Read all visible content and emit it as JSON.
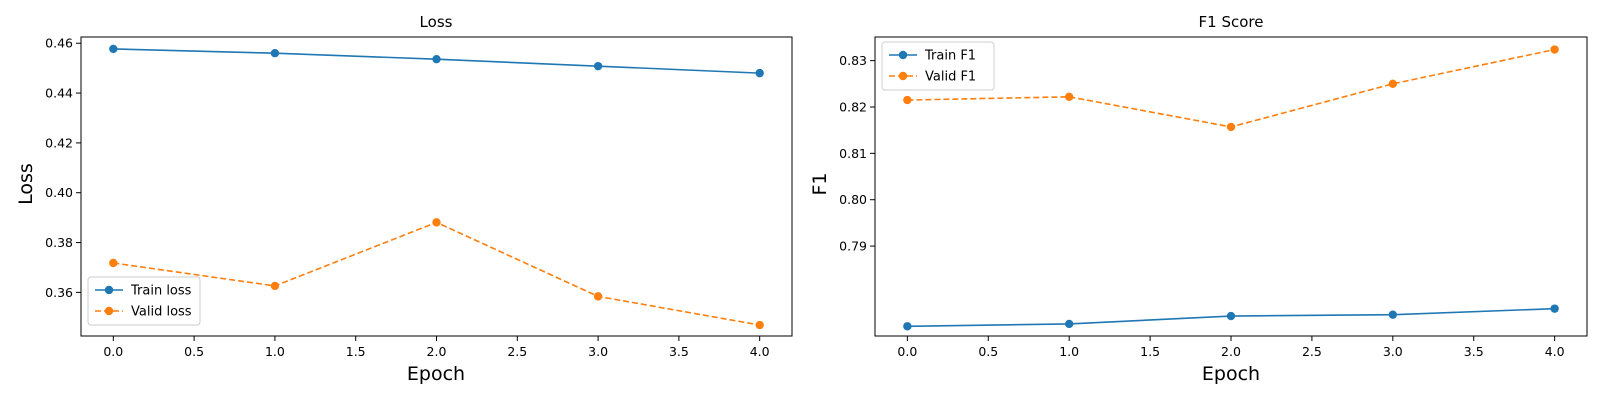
{
  "chart_data": [
    {
      "type": "line",
      "title": "Loss",
      "xlabel": "Epoch",
      "ylabel": "Loss",
      "xlim": [
        -0.2,
        4.2
      ],
      "ylim": [
        0.3425,
        0.4625
      ],
      "xticks": [
        0.0,
        0.5,
        1.0,
        1.5,
        2.0,
        2.5,
        3.0,
        3.5,
        4.0
      ],
      "xtick_labels": [
        "0.0",
        "0.5",
        "1.0",
        "1.5",
        "2.0",
        "2.5",
        "3.0",
        "3.5",
        "4.0"
      ],
      "yticks": [
        0.36,
        0.38,
        0.4,
        0.42,
        0.44,
        0.46
      ],
      "ytick_labels": [
        "0.36",
        "0.38",
        "0.40",
        "0.42",
        "0.44",
        "0.46"
      ],
      "grid": false,
      "legend_position": "lower-left",
      "x": [
        0,
        1,
        2,
        3,
        4
      ],
      "series": [
        {
          "name": "Train loss",
          "values": [
            0.4577,
            0.456,
            0.4536,
            0.4508,
            0.448
          ],
          "color": "#1f77b4",
          "dashed": false
        },
        {
          "name": "Valid loss",
          "values": [
            0.3718,
            0.3626,
            0.3881,
            0.3584,
            0.3469
          ],
          "color": "#ff7f0e",
          "dashed": true
        }
      ]
    },
    {
      "type": "line",
      "title": "F1 Score",
      "xlabel": "Epoch",
      "ylabel": "F1",
      "xlim": [
        -0.2,
        4.2
      ],
      "ylim": [
        0.7706,
        0.8351
      ],
      "xticks": [
        0.0,
        0.5,
        1.0,
        1.5,
        2.0,
        2.5,
        3.0,
        3.5,
        4.0
      ],
      "xtick_labels": [
        "0.0",
        "0.5",
        "1.0",
        "1.5",
        "2.0",
        "2.5",
        "3.0",
        "3.5",
        "4.0"
      ],
      "yticks": [
        0.79,
        0.8,
        0.81,
        0.82,
        0.83
      ],
      "ytick_labels": [
        "0.79",
        "0.80",
        "0.81",
        "0.82",
        "0.83"
      ],
      "grid": false,
      "legend_position": "upper-left",
      "x": [
        0,
        1,
        2,
        3,
        4
      ],
      "series": [
        {
          "name": "Train F1",
          "values": [
            0.7727,
            0.7732,
            0.7749,
            0.7752,
            0.7765
          ],
          "color": "#1f77b4",
          "dashed": false
        },
        {
          "name": "Valid F1",
          "values": [
            0.8215,
            0.8222,
            0.8157,
            0.825,
            0.8324
          ],
          "color": "#ff7f0e",
          "dashed": true
        }
      ]
    }
  ]
}
